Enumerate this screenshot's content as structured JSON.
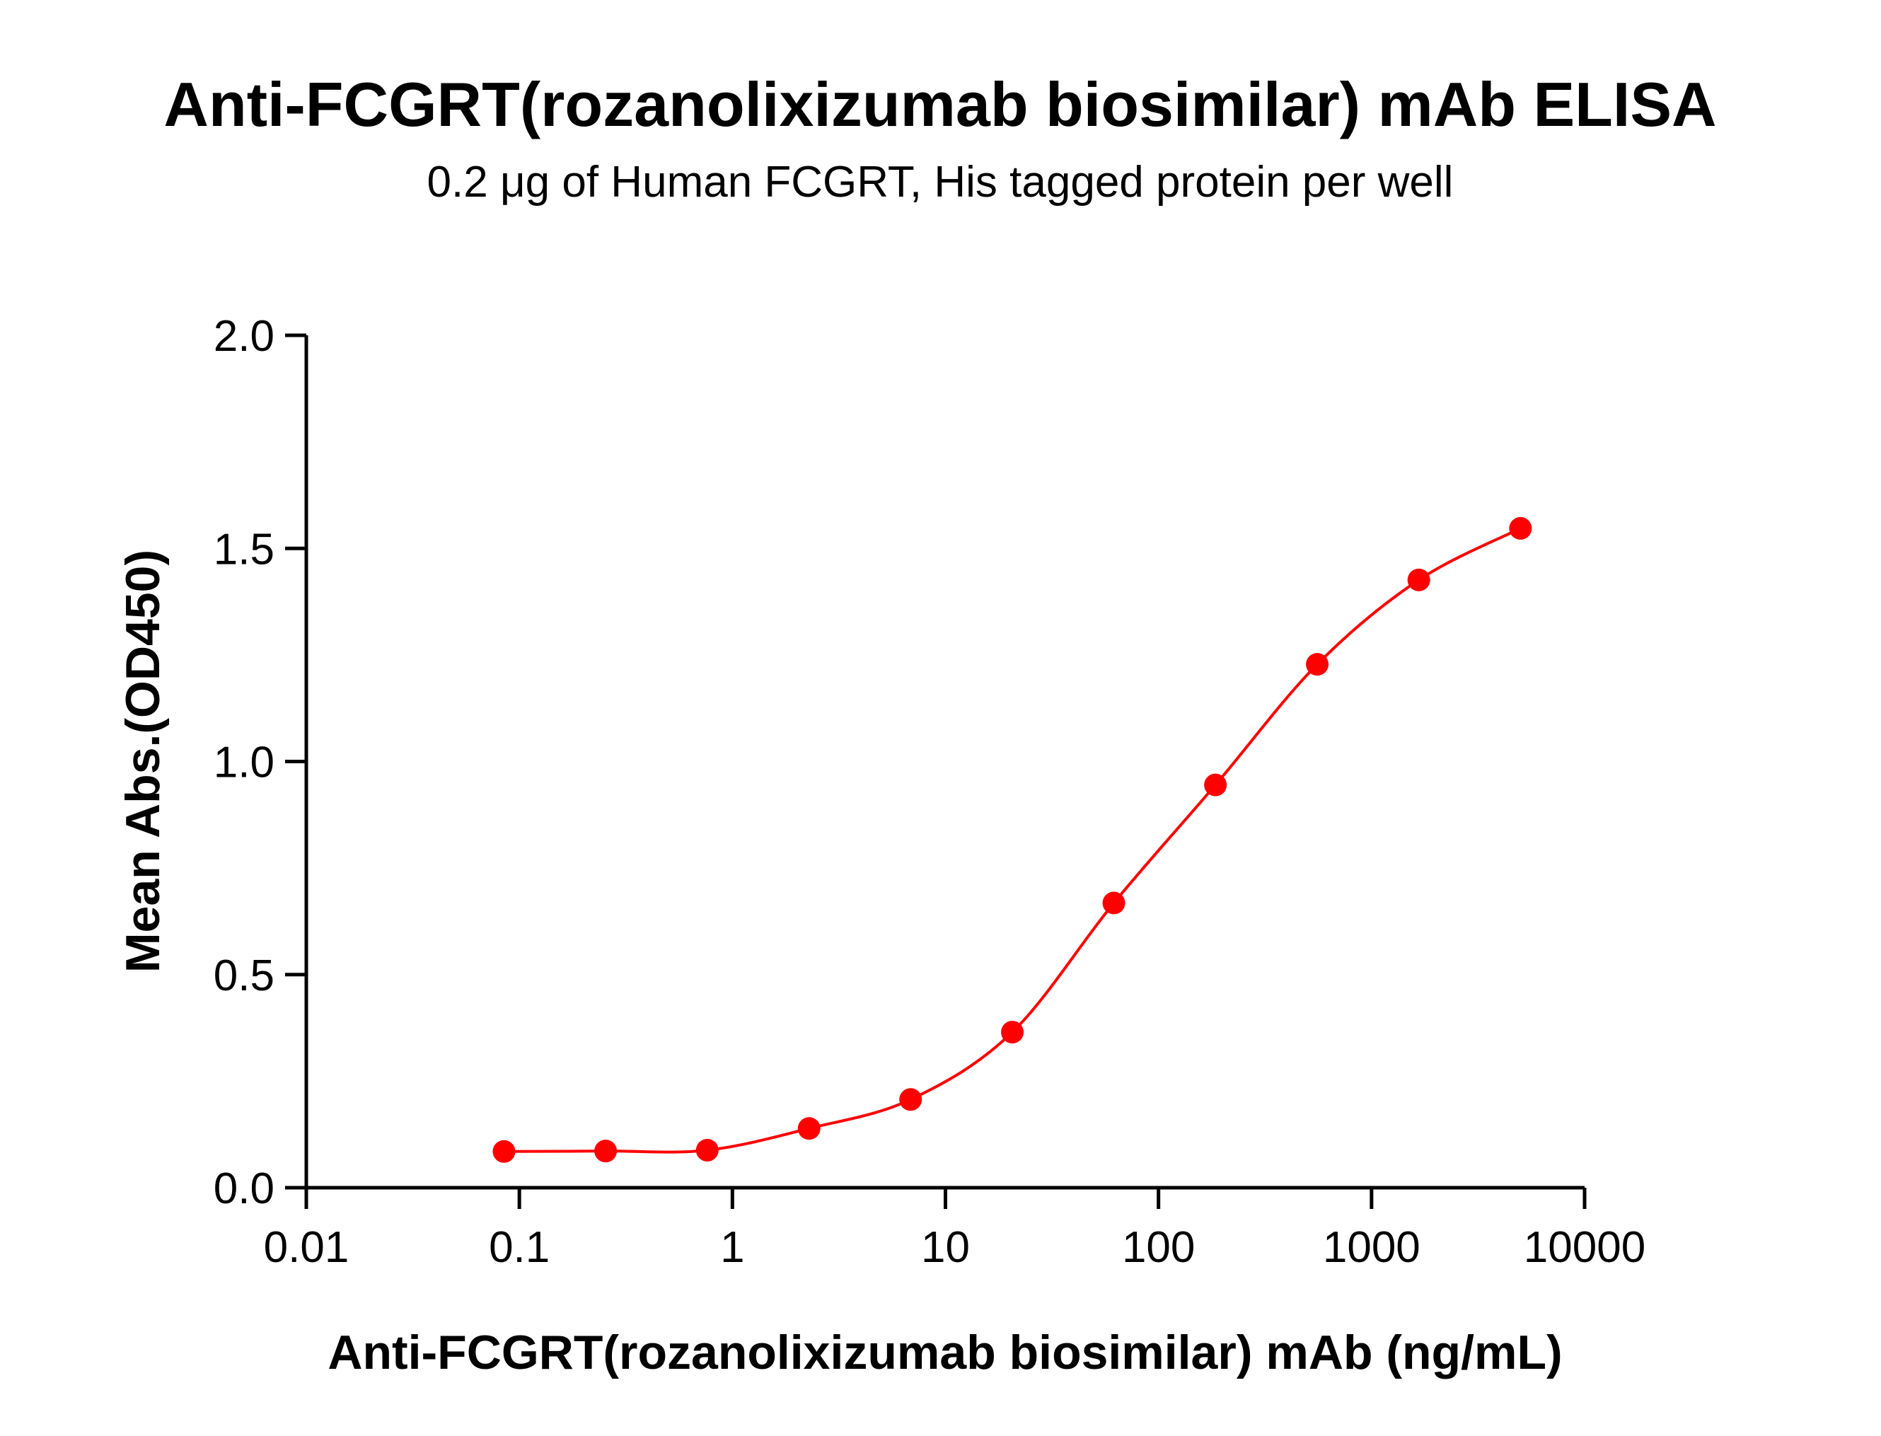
{
  "chart_data": {
    "type": "line",
    "title": "Anti-FCGRT(rozanolixizumab biosimilar) mAb ELISA",
    "subtitle": "0.2 μg of Human FCGRT, His tagged protein per well",
    "xlabel": "Anti-FCGRT(rozanolixizumab biosimilar) mAb (ng/mL)",
    "ylabel": "Mean Abs.(OD450)",
    "xscale": "log",
    "xlim": [
      0.01,
      10000
    ],
    "ylim": [
      0,
      2.0
    ],
    "xticks": [
      0.01,
      0.1,
      1,
      10,
      100,
      1000,
      10000
    ],
    "xtick_labels": [
      "0.01",
      "0.1",
      "1",
      "10",
      "100",
      "1000",
      "10000"
    ],
    "yticks": [
      0,
      0.5,
      1.0,
      1.5,
      2.0
    ],
    "ytick_labels": [
      "0.0",
      "0.5",
      "1.0",
      "1.5",
      "2.0"
    ],
    "grid": false,
    "series": [
      {
        "color": "#ff0000",
        "x": [
          0.0847,
          0.254,
          0.762,
          2.29,
          6.86,
          20.6,
          61.7,
          185,
          556,
          1667,
          5000
        ],
        "y": [
          0.085,
          0.086,
          0.088,
          0.139,
          0.207,
          0.365,
          0.668,
          0.945,
          1.228,
          1.426,
          1.547
        ]
      }
    ]
  }
}
